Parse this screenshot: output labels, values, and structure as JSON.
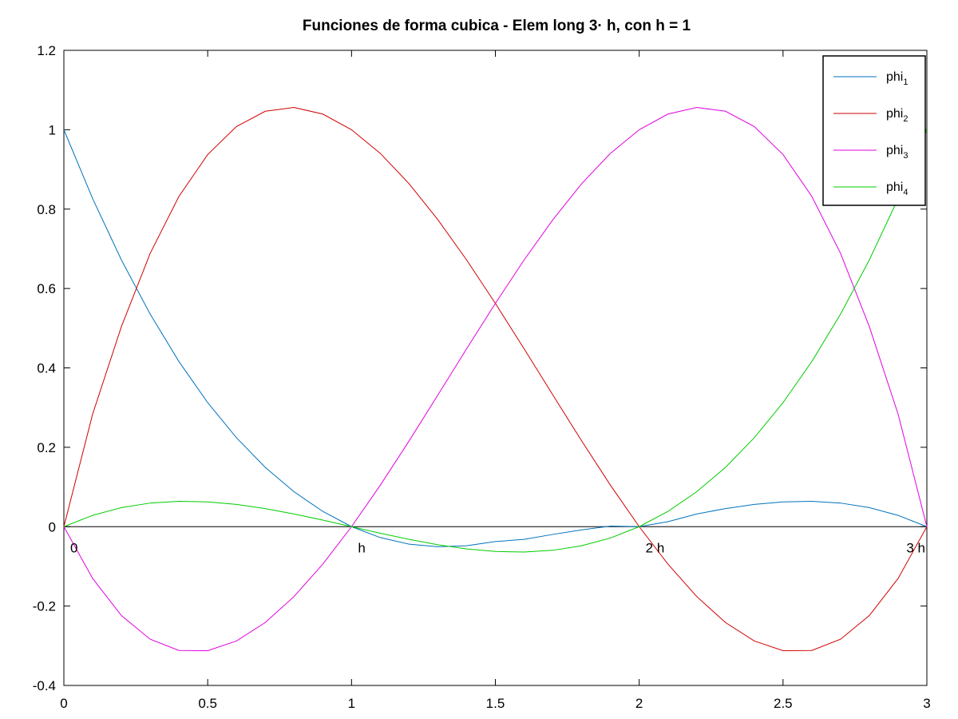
{
  "chart_data": {
    "type": "line",
    "title": "Funciones de forma cubica - Elem long 3· h, con h = 1",
    "xlabel": "",
    "ylabel": "",
    "xlim": [
      0,
      3
    ],
    "ylim": [
      -0.4,
      1.2
    ],
    "x_ticks": [
      0,
      0.5,
      1,
      1.5,
      2,
      2.5,
      3
    ],
    "x_tick_labels": [
      "0",
      "0.5",
      "1",
      "1.5",
      "2",
      "2.5",
      "3"
    ],
    "y_ticks": [
      -0.4,
      -0.2,
      0,
      0.2,
      0.4,
      0.6,
      0.8,
      1,
      1.2
    ],
    "y_tick_labels": [
      "-0.4",
      "-0.2",
      "0",
      "0.2",
      "0.4",
      "0.6",
      "0.8",
      "1",
      "1.2"
    ],
    "grid": false,
    "legend_position": "top-right",
    "x": [
      0,
      0.1,
      0.2,
      0.3,
      0.4,
      0.5,
      0.6,
      0.7,
      0.8,
      0.9,
      1.0,
      1.1,
      1.2,
      1.3,
      1.4,
      1.5,
      1.6,
      1.7,
      1.8,
      1.9,
      2.0,
      2.1,
      2.2,
      2.3,
      2.4,
      2.5,
      2.6,
      2.7,
      2.8,
      2.9,
      3.0
    ],
    "series": [
      {
        "name": "phi_1",
        "legend_base": "phi",
        "legend_sub": "1",
        "color": "#0072bd",
        "values": [
          1.0,
          0.8265,
          0.672,
          0.5355,
          0.416,
          0.3125,
          0.224,
          0.1495,
          0.088,
          0.0385,
          0.0,
          -0.0275,
          -0.044,
          -0.0505,
          -0.048,
          -0.0375,
          -0.032,
          -0.0195,
          -0.008,
          0.0015,
          0.0,
          0.0125,
          0.032,
          0.0455,
          0.056,
          0.0625,
          0.064,
          0.0595,
          0.048,
          0.0285,
          0.0
        ]
      },
      {
        "name": "phi_2",
        "legend_base": "phi",
        "legend_sub": "2",
        "color": "#d00000",
        "values": [
          0.0,
          0.2835,
          0.504,
          0.6885,
          0.832,
          0.9375,
          1.008,
          1.0465,
          1.056,
          1.0395,
          1.0,
          0.9405,
          0.864,
          0.7735,
          0.672,
          0.5625,
          0.448,
          0.3315,
          0.216,
          0.1045,
          0.0,
          -0.0945,
          -0.176,
          -0.2415,
          -0.288,
          -0.3125,
          -0.312,
          -0.2835,
          -0.224,
          -0.1305,
          0.0
        ]
      },
      {
        "name": "phi_3",
        "legend_base": "phi",
        "legend_sub": "3",
        "color": "#e000e0",
        "values": [
          0.0,
          -0.1305,
          -0.224,
          -0.2835,
          -0.312,
          -0.3125,
          -0.288,
          -0.2415,
          -0.176,
          -0.0945,
          0.0,
          0.1045,
          0.216,
          0.3315,
          0.448,
          0.5625,
          0.672,
          0.7735,
          0.864,
          0.9405,
          1.0,
          1.0395,
          1.056,
          1.0465,
          1.008,
          0.9375,
          0.832,
          0.6885,
          0.504,
          0.2835,
          0.0
        ]
      },
      {
        "name": "phi_4",
        "legend_base": "phi",
        "legend_sub": "4",
        "color": "#00cc00",
        "values": [
          0.0,
          0.0285,
          0.048,
          0.0595,
          0.064,
          0.0625,
          0.056,
          0.0455,
          0.032,
          0.0165,
          0.0,
          -0.0165,
          -0.032,
          -0.0455,
          -0.056,
          -0.0625,
          -0.064,
          -0.0595,
          -0.048,
          -0.0285,
          0.0,
          0.0385,
          0.088,
          0.1495,
          0.224,
          0.3125,
          0.416,
          0.5355,
          0.672,
          0.8265,
          1.0
        ]
      }
    ],
    "annotations": [
      {
        "text": "0",
        "x": 0,
        "y": 0
      },
      {
        "text": "h",
        "x": 1,
        "y": 0
      },
      {
        "text": "2 h",
        "x": 2,
        "y": 0
      },
      {
        "text": "3 h",
        "x": 3,
        "y": 0
      }
    ]
  }
}
